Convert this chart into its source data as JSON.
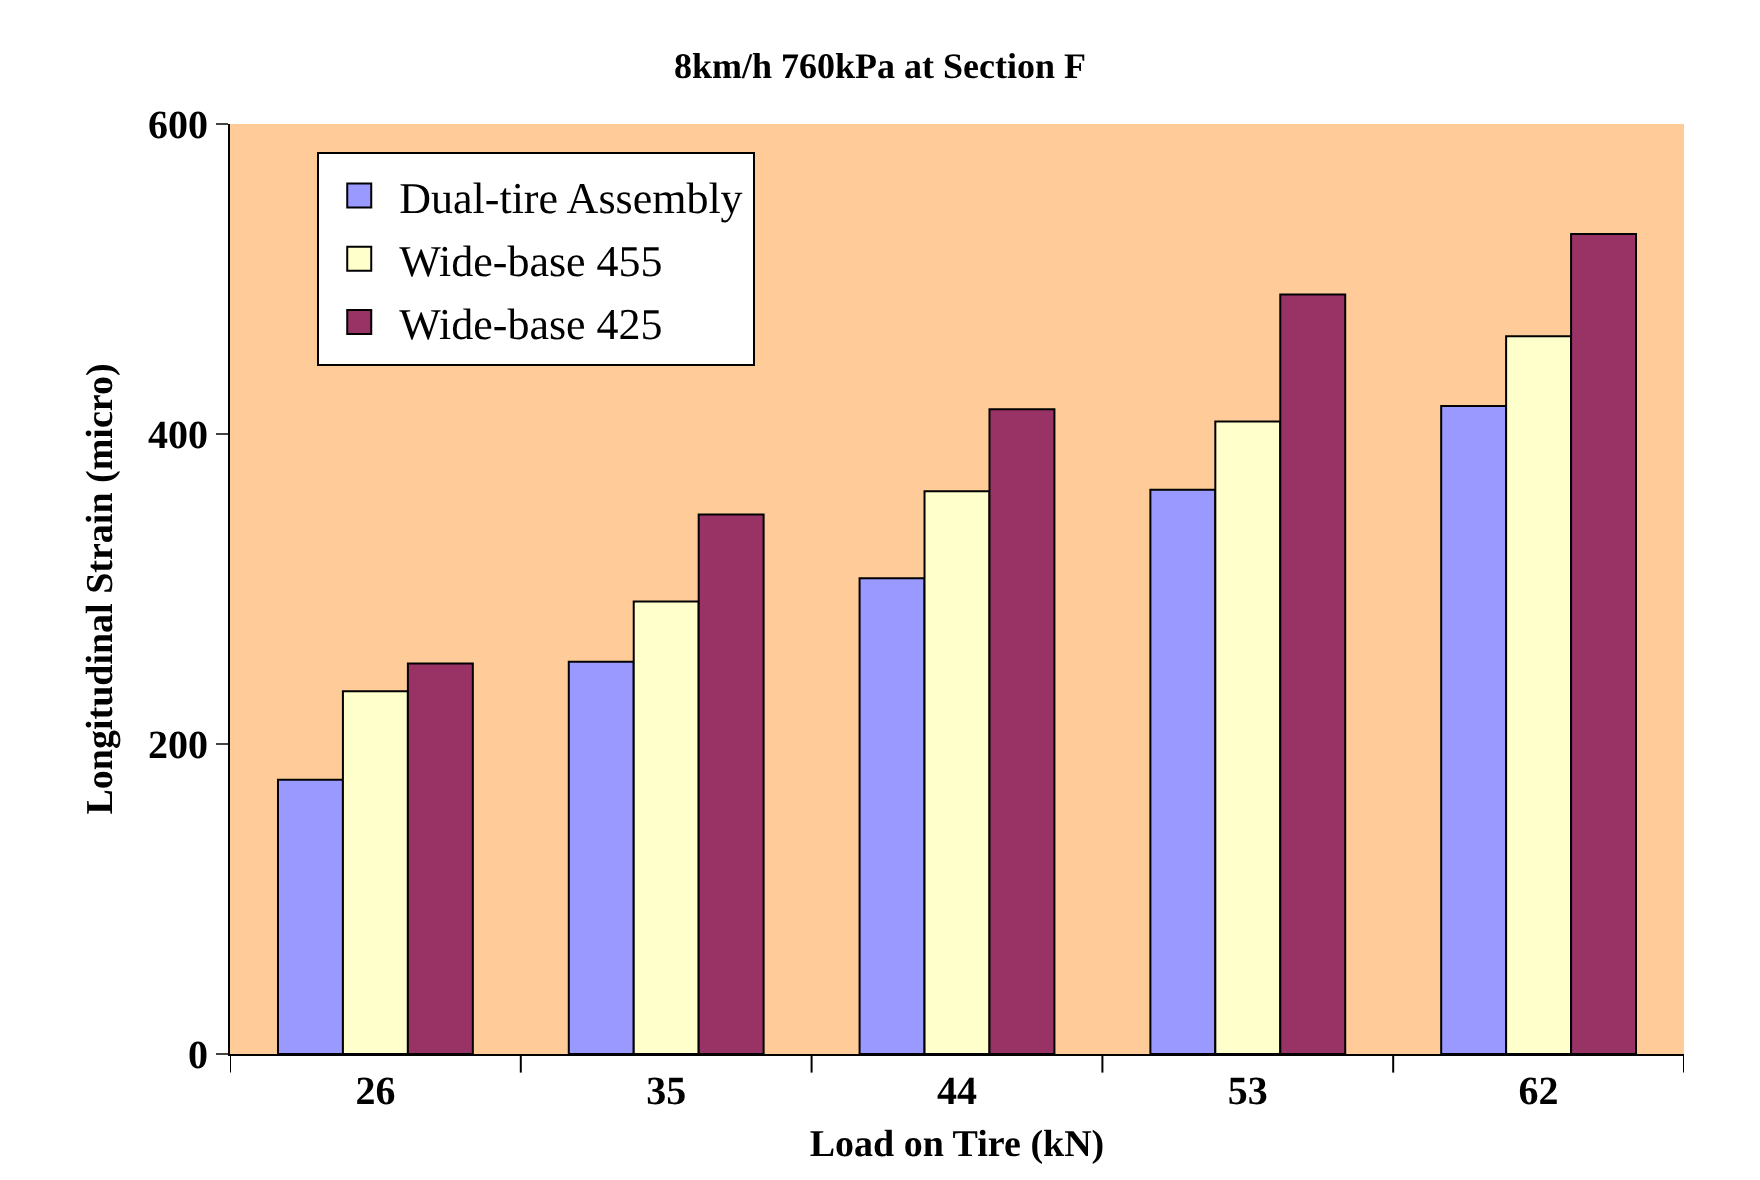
{
  "chart_data": {
    "type": "bar",
    "title": "8km/h 760kPa at Section F",
    "xlabel": "Load on Tire (kN)",
    "ylabel": "Longitudinal Strain (micro)",
    "categories": [
      "26",
      "35",
      "44",
      "53",
      "62"
    ],
    "series": [
      {
        "name": "Dual-tire Assembly",
        "color": "#9999ff",
        "values": [
          177,
          253,
          307,
          364,
          418
        ]
      },
      {
        "name": "Wide-base 455",
        "color": "#ffffcc",
        "values": [
          234,
          292,
          363,
          408,
          463
        ]
      },
      {
        "name": "Wide-base 425",
        "color": "#993366",
        "values": [
          252,
          348,
          416,
          490,
          529
        ]
      }
    ],
    "ylim": [
      0,
      600
    ],
    "yticks": [
      0,
      200,
      400,
      600
    ],
    "grid": false,
    "legend": "top left"
  }
}
